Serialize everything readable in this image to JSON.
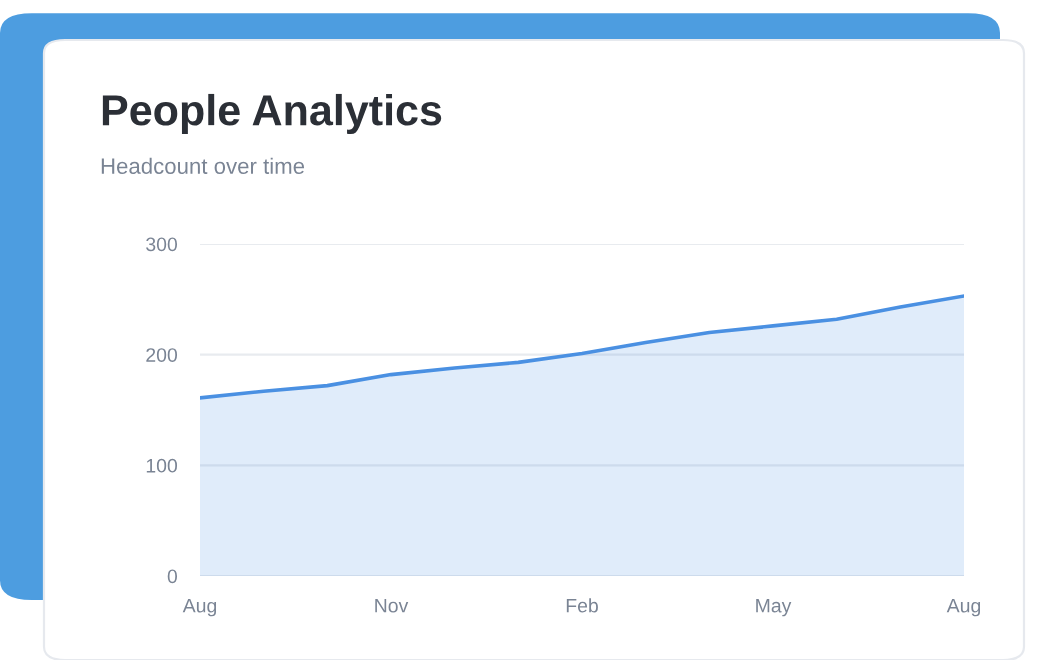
{
  "chart_data": {
    "type": "area",
    "title": "People Analytics",
    "subtitle": "Headcount over time",
    "categories": [
      "Aug",
      null,
      null,
      "Nov",
      null,
      null,
      "Feb",
      null,
      null,
      "May",
      null,
      null,
      "Aug"
    ],
    "series": [
      {
        "color": "#4a90e2",
        "values": [
          161,
          167,
          172,
          182,
          188,
          193,
          201,
          211,
          220,
          226,
          232,
          243,
          253
        ]
      }
    ],
    "ylim": [
      0,
      300
    ],
    "yticks": [
      0,
      100,
      200,
      300
    ],
    "grid": "y",
    "marker": "none",
    "line_style": "solid"
  }
}
